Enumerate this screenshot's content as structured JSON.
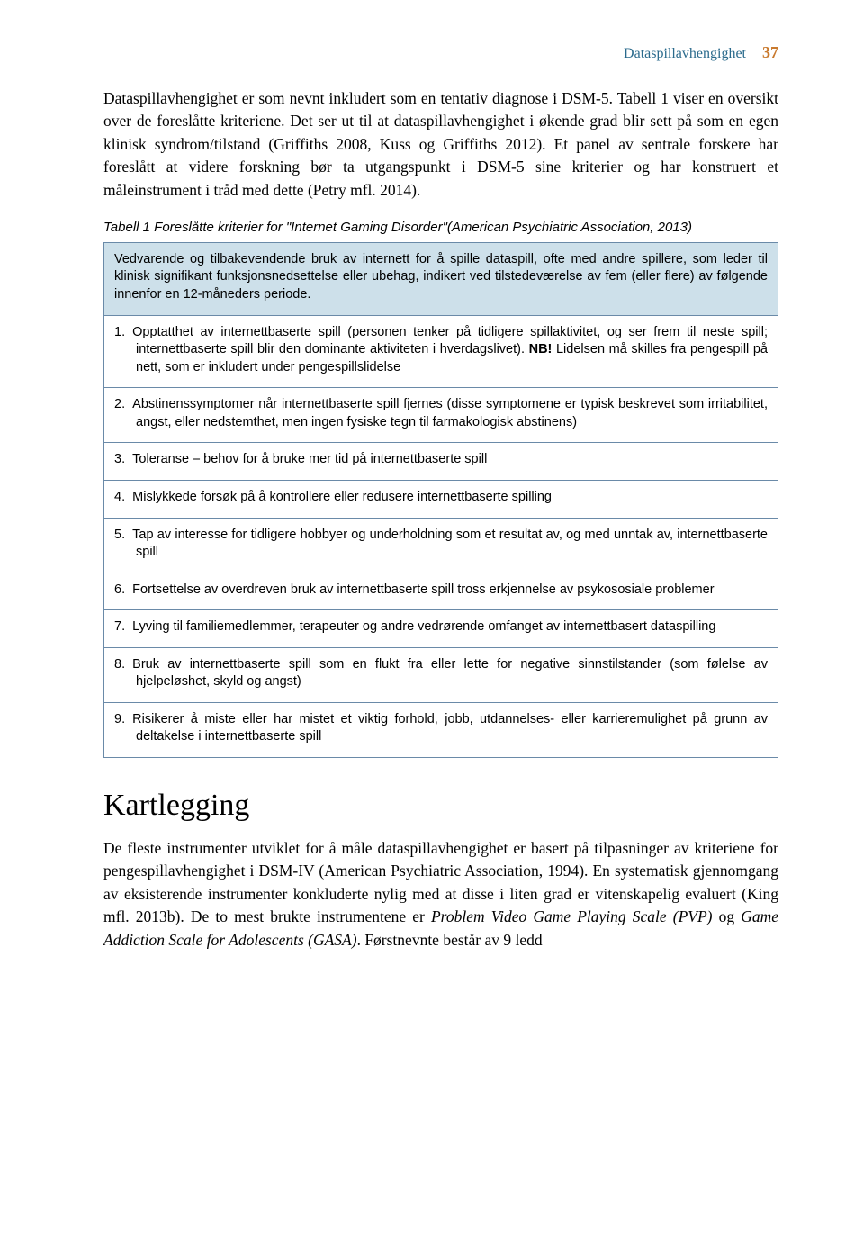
{
  "header": {
    "running_title": "Dataspillavhengighet",
    "running_title_color": "#2a6a8c",
    "page_number": "37",
    "page_number_color": "#c97a2e"
  },
  "paragraphs": {
    "intro": "Dataspillavhengighet er som nevnt inkludert som en tentativ diagnose i DSM-5. Tabell 1 viser en oversikt over de foreslåtte kriteriene. Det ser ut til at dataspillavhengighet i økende grad blir sett på som en egen klinisk syndrom/tilstand (Griffiths 2008, Kuss og Griffiths 2012). Et panel av sentrale forskere har foreslått at videre forskning bør ta utgangspunkt i DSM-5 sine kriterier og har konstruert et måleinstrument i tråd med dette (Petry mfl. 2014).",
    "kartlegging_p1_a": "De fleste instrumenter utviklet for å måle dataspillavhengighet er basert på tilpasninger av kriteriene for pengespillavhengighet i DSM-IV (American Psychiatric Association, 1994). En systematisk gjennomgang av eksisterende instrumenter konkluderte nylig med at disse i liten grad er vitenskapelig evaluert (King mfl. 2013b). De to mest brukte instrumentene er ",
    "kartlegging_pvp": "Problem Video Game Playing Scale (PVP)",
    "kartlegging_og": " og ",
    "kartlegging_gasa": "Game Addiction Scale for Adolescents (GASA)",
    "kartlegging_p1_b": ". Førstnevnte består av 9 ledd"
  },
  "table": {
    "caption": "Tabell 1 Foreslåtte kriterier for \"Internet Gaming Disorder\"(American Psychiatric Association, 2013)",
    "header_cell": "Vedvarende og tilbakevendende bruk av internett for å spille dataspill, ofte med andre spillere, som leder til klinisk signifikant funksjonsnedsettelse eller ubehag, indikert ved tilstedeværelse av fem (eller flere) av følgende innenfor en 12-måneders periode.",
    "header_bg": "#cde0ea",
    "border_color": "#6a8aa8",
    "rows": [
      {
        "num": "1.",
        "text_a": "Opptatthet av internettbaserte spill (personen tenker på tidligere spillaktivitet, og ser frem til neste spill; internettbaserte spill blir den dominante aktiviteten i hverdagslivet). ",
        "bold": "NB!",
        "text_b": " Lidelsen må skilles fra pengespill på nett, som er inkludert under pengespillslidelse",
        "justify": true
      },
      {
        "num": "2.",
        "text_a": "Abstinenssymptomer når internettbaserte spill fjernes (disse symptomene er typisk beskrevet som irritabilitet, angst, eller nedstemthet, men ingen fysiske tegn til farmakologisk abstinens)",
        "justify": true
      },
      {
        "num": "3.",
        "text_a": "Toleranse – behov for å bruke mer tid på internettbaserte spill"
      },
      {
        "num": "4.",
        "text_a": "Mislykkede forsøk på å kontrollere eller redusere internettbaserte spilling"
      },
      {
        "num": "5.",
        "text_a": "Tap av interesse for tidligere hobbyer og underholdning som et resultat av, og med unntak av, internettbaserte spill",
        "justify": true
      },
      {
        "num": "6.",
        "text_a": "Fortsettelse av overdreven bruk av internettbaserte spill tross erkjennelse av psykososiale problemer",
        "justify": true
      },
      {
        "num": "7.",
        "text_a": "Lyving til familiemedlemmer, terapeuter og andre vedrørende omfanget av internettbasert dataspilling",
        "justify": true
      },
      {
        "num": "8.",
        "text_a": "Bruk av internettbaserte spill som en flukt fra eller lette for negative sinnstilstander (som følelse av hjelpeløshet, skyld og angst)",
        "justify": true
      },
      {
        "num": "9.",
        "text_a": "Risikerer å miste eller har mistet et viktig forhold, jobb, utdannelses- eller karrieremulighet på grunn av deltakelse i internettbaserte spill",
        "justify": true
      }
    ]
  },
  "section_heading": "Kartlegging"
}
